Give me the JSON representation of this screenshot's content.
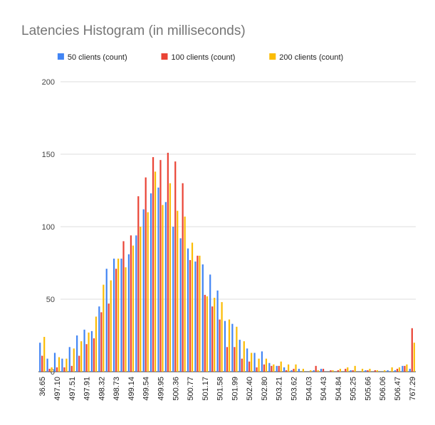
{
  "chart_data": {
    "type": "bar",
    "title": "Latencies Histogram (in milliseconds)",
    "categories": [
      "36.65",
      null,
      "497.10",
      null,
      "497.51",
      null,
      "497.91",
      null,
      "498.32",
      null,
      "498.73",
      null,
      "499.14",
      null,
      "499.54",
      null,
      "499.95",
      null,
      "500.36",
      null,
      "500.77",
      null,
      "501.17",
      null,
      "501.58",
      null,
      "501.99",
      null,
      "502.40",
      null,
      "502.80",
      null,
      "503.21",
      null,
      "503.62",
      null,
      "504.03",
      null,
      "504.43",
      null,
      "504.84",
      null,
      "505.25",
      null,
      "505.66",
      null,
      "506.06",
      null,
      "506.47",
      null,
      "767.29"
    ],
    "series": [
      {
        "name": "50 clients (count)",
        "color": "#4285f4",
        "values": [
          20,
          9,
          13,
          9,
          17,
          25,
          29,
          28,
          45,
          71,
          78,
          78,
          81,
          94,
          112,
          123,
          127,
          117,
          100,
          92,
          85,
          76,
          74,
          67,
          56,
          35,
          33,
          22,
          16,
          13,
          14,
          6,
          4,
          3,
          1,
          2,
          0,
          1,
          2,
          0,
          0,
          0,
          1,
          0,
          1,
          0,
          0,
          1,
          1,
          4,
          2
        ]
      },
      {
        "name": "100 clients (count)",
        "color": "#ea4335",
        "values": [
          11,
          2,
          3,
          3,
          4,
          11,
          19,
          23,
          41,
          47,
          71,
          90,
          94,
          121,
          134,
          148,
          146,
          151,
          145,
          130,
          77,
          80,
          53,
          45,
          36,
          17,
          17,
          9,
          7,
          3,
          5,
          4,
          4,
          1,
          2,
          0,
          0,
          4,
          2,
          1,
          1,
          2,
          1,
          0,
          1,
          1,
          0,
          0,
          2,
          4,
          30
        ]
      },
      {
        "name": "200 clients (count)",
        "color": "#fbbc04",
        "values": [
          24,
          3,
          10,
          9,
          16,
          21,
          27,
          38,
          60,
          63,
          78,
          72,
          87,
          100,
          110,
          138,
          115,
          130,
          111,
          107,
          89,
          80,
          52,
          51,
          48,
          36,
          31,
          21,
          13,
          9,
          9,
          5,
          7,
          5,
          5,
          2,
          1,
          1,
          0,
          1,
          2,
          3,
          4,
          2,
          2,
          1,
          1,
          3,
          3,
          5,
          20
        ]
      }
    ],
    "ylim": [
      0,
      200
    ],
    "yticks": [
      0,
      50,
      100,
      150,
      200
    ],
    "grid": true,
    "legend": "top"
  }
}
